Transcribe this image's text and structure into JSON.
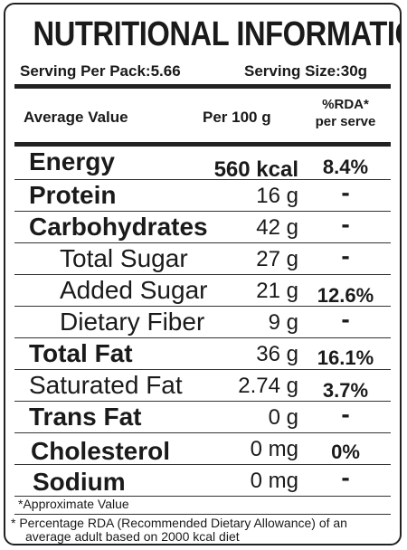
{
  "title": "NUTRITIONAL INFORMATION",
  "serving": {
    "per_pack": "Serving Per Pack:5.66",
    "size": "Serving Size:30g"
  },
  "headers": {
    "average": "Average Value",
    "per100": "Per 100 g",
    "rda_line1": "%RDA*",
    "rda_line2": "per serve"
  },
  "rows": [
    {
      "name": "Energy",
      "value": "560 kcal",
      "rda": "8.4%"
    },
    {
      "name": "Protein",
      "value": "16 g",
      "rda": "-"
    },
    {
      "name": "Carbohydrates",
      "value": "42 g",
      "rda": "-"
    },
    {
      "name": "Total Sugar",
      "value": "27 g",
      "rda": "-"
    },
    {
      "name": "Added Sugar",
      "value": "21 g",
      "rda": "12.6%"
    },
    {
      "name": "Dietary Fiber",
      "value": "9 g",
      "rda": "-"
    },
    {
      "name": "Total Fat",
      "value": "36 g",
      "rda": "16.1%"
    },
    {
      "name": "Saturated Fat",
      "value": "2.74 g",
      "rda": "3.7%"
    },
    {
      "name": "Trans Fat",
      "value": "0 g",
      "rda": "-"
    },
    {
      "name": "Cholesterol",
      "value": "0 mg",
      "rda": "0%"
    },
    {
      "name": "Sodium",
      "value": "0 mg",
      "rda": "-"
    }
  ],
  "footnotes": {
    "approx": "*Approximate Value",
    "rda_note_line1": "* Percentage RDA (Recommended Dietary Allowance) of an",
    "rda_note_line2": "average adult based on 2000 kcal diet"
  }
}
